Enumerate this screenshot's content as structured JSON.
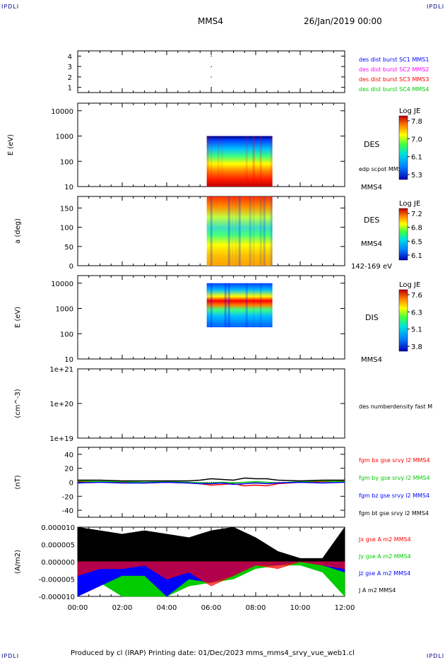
{
  "corner_label": "IPDLI",
  "header": {
    "title": "MMS4",
    "date": "26/Jan/2019 00:00"
  },
  "footer": "Produced by cl (IRAP)   Printing date: 01/Dec/2023   mms_mms4_srvy_vue_web1.cl",
  "colors": {
    "c1": "#0000ff",
    "c2": "#ff00ff",
    "c3": "#ff0000",
    "c4": "#00cc00",
    "bt": "#000000"
  },
  "x_ticks": [
    "00:00",
    "02:00",
    "04:00",
    "06:00",
    "08:00",
    "10:00",
    "12:00"
  ],
  "chart_data": [
    {
      "type": "scatter",
      "panel": "des-dist-burst",
      "yticks": [
        "4",
        "3",
        "2",
        "1"
      ],
      "ylim": [
        0.5,
        4.5
      ],
      "series": [
        {
          "name": "des dist burst SC1 MMS1",
          "color": "#0000ff",
          "y": 1,
          "x": [
            6.0
          ]
        },
        {
          "name": "des dist burst SC2 MMS2",
          "color": "#ff00ff",
          "y": 2,
          "x": [
            6.0
          ]
        },
        {
          "name": "des dist burst SC3 MMS3",
          "color": "#ff0000",
          "y": 3,
          "x": [
            6.0
          ]
        },
        {
          "name": "des dist burst SC4 MMS4",
          "color": "#00cc00",
          "y": 4,
          "x": [
            6.0
          ]
        }
      ]
    },
    {
      "type": "heatmap",
      "panel": "des-energy",
      "ylabel": "E (eV)",
      "yticks": [
        "10000",
        "1000",
        "100",
        "10"
      ],
      "log": true,
      "ylim": [
        10,
        20000
      ],
      "data_x": [
        5.8,
        8.75
      ],
      "label": "DES",
      "sublabel": "edp scpot MMS4",
      "bottom_label": "MMS4",
      "colorbar": {
        "title": "Log JE",
        "ticks": [
          "7.8",
          "7.0",
          "6.1",
          "5.3"
        ]
      }
    },
    {
      "type": "heatmap",
      "panel": "des-pitch",
      "ylabel": "a (deg)",
      "yticks": [
        "150",
        "100",
        "50",
        "0"
      ],
      "ylim": [
        0,
        180
      ],
      "data_x": [
        5.8,
        8.75
      ],
      "label": "DES",
      "sublabel": "MMS4",
      "bottom_label": "142-169 eV",
      "colorbar": {
        "title": "Log JE",
        "ticks": [
          "7.2",
          "6.8",
          "6.5",
          "6.1"
        ]
      }
    },
    {
      "type": "heatmap",
      "panel": "dis-energy",
      "ylabel": "E (eV)",
      "yticks": [
        "10000",
        "1000",
        "100",
        "10"
      ],
      "log": true,
      "ylim": [
        10,
        20000
      ],
      "data_x": [
        5.8,
        8.75
      ],
      "label": "DIS",
      "bottom_label": "MMS4",
      "colorbar": {
        "title": "Log JE",
        "ticks": [
          "7.6",
          "6.3",
          "5.1",
          "3.8"
        ]
      }
    },
    {
      "type": "line",
      "panel": "density",
      "ylabel": "(cm^-3)",
      "yticks": [
        "1e+21",
        "1e+20",
        "1e+19"
      ],
      "log": true,
      "legend": [
        "des numberdensity fast M"
      ]
    },
    {
      "type": "line",
      "panel": "fgm",
      "ylabel": "(nT)",
      "yticks": [
        "40",
        "20",
        "0",
        "-20",
        "-40"
      ],
      "ylim": [
        -50,
        50
      ],
      "legend": [
        "fgm bx gse srvy l2 MMS4",
        "fgm by gse srvy l2 MMS4",
        "fgm bz gse srvy l2 MMS4",
        "fgm bt gse srvy l2 MMS4"
      ],
      "x": [
        0,
        1,
        2,
        3,
        4,
        5,
        5.5,
        6,
        6.5,
        7,
        7.5,
        8,
        8.5,
        9,
        10,
        11,
        12
      ],
      "series": [
        {
          "name": "fgm bx gse srvy l2 MMS4",
          "color": "#ff0000",
          "values": [
            1,
            1,
            0,
            -1,
            0,
            -1,
            -2,
            -4,
            -3,
            -2,
            -5,
            -4,
            -5,
            -2,
            0,
            1,
            2
          ]
        },
        {
          "name": "fgm by gse srvy l2 MMS4",
          "color": "#00cc00",
          "values": [
            2,
            1,
            1,
            0,
            1,
            0,
            -1,
            -1,
            0,
            -1,
            0,
            1,
            0,
            -1,
            1,
            2,
            1
          ]
        },
        {
          "name": "fgm bz gse srvy l2 MMS4",
          "color": "#0000ff",
          "values": [
            -1,
            0,
            -1,
            -1,
            0,
            -1,
            -2,
            -2,
            -1,
            -3,
            -2,
            -1,
            -2,
            -1,
            0,
            -1,
            0
          ]
        },
        {
          "name": "fgm bt gse srvy l2 MMS4",
          "color": "#000000",
          "values": [
            3,
            3,
            2,
            2,
            2,
            2,
            3,
            5,
            4,
            3,
            6,
            5,
            5,
            3,
            2,
            3,
            3
          ]
        }
      ]
    },
    {
      "type": "area",
      "panel": "current",
      "ylabel": "(A/m2)",
      "yticks": [
        "0.000010",
        "0.000005",
        "0.000000",
        "-0.000005",
        "-0.000010"
      ],
      "ylim": [
        -1e-05,
        1e-05
      ],
      "legend": [
        "Jx gse A m2 MMS4",
        "Jy gse A m2 MMS4",
        "Jz gse A m2 MMS4",
        "J A m2 MMS4"
      ],
      "x": [
        0,
        1,
        2,
        3,
        4,
        5,
        6,
        7,
        8,
        9,
        10,
        11,
        12
      ],
      "series": [
        {
          "name": "J A m2 MMS4",
          "color": "#000000",
          "values": [
            1e-05,
            9e-06,
            8e-06,
            9e-06,
            8e-06,
            7e-06,
            9e-06,
            1e-05,
            7e-06,
            3e-06,
            1e-06,
            1e-06,
            1e-05
          ]
        },
        {
          "name": "Jy gse A m2 MMS4",
          "color": "#00cc00",
          "values": [
            -1e-05,
            -6e-06,
            -1e-05,
            -1e-05,
            -1e-05,
            -7e-06,
            -6e-06,
            -5e-06,
            -2e-06,
            -1e-06,
            -1e-06,
            -3e-06,
            -1e-05
          ]
        },
        {
          "name": "Jz gse A m2 MMS4",
          "color": "#0000ff",
          "values": [
            -1e-05,
            -7e-06,
            -4e-06,
            -4e-06,
            -1e-05,
            -5e-06,
            -6e-06,
            -4e-06,
            -1e-06,
            -1e-06,
            0.0,
            -1e-06,
            -3e-06
          ]
        },
        {
          "name": "Jx gse A m2 MMS4",
          "color": "#ff0000",
          "values": [
            -4e-06,
            -2e-06,
            -2e-06,
            -1e-06,
            -5e-06,
            -3e-06,
            -7e-06,
            -4e-06,
            -1e-06,
            -2e-06,
            0.0,
            -1e-06,
            -2e-06
          ]
        }
      ]
    }
  ]
}
